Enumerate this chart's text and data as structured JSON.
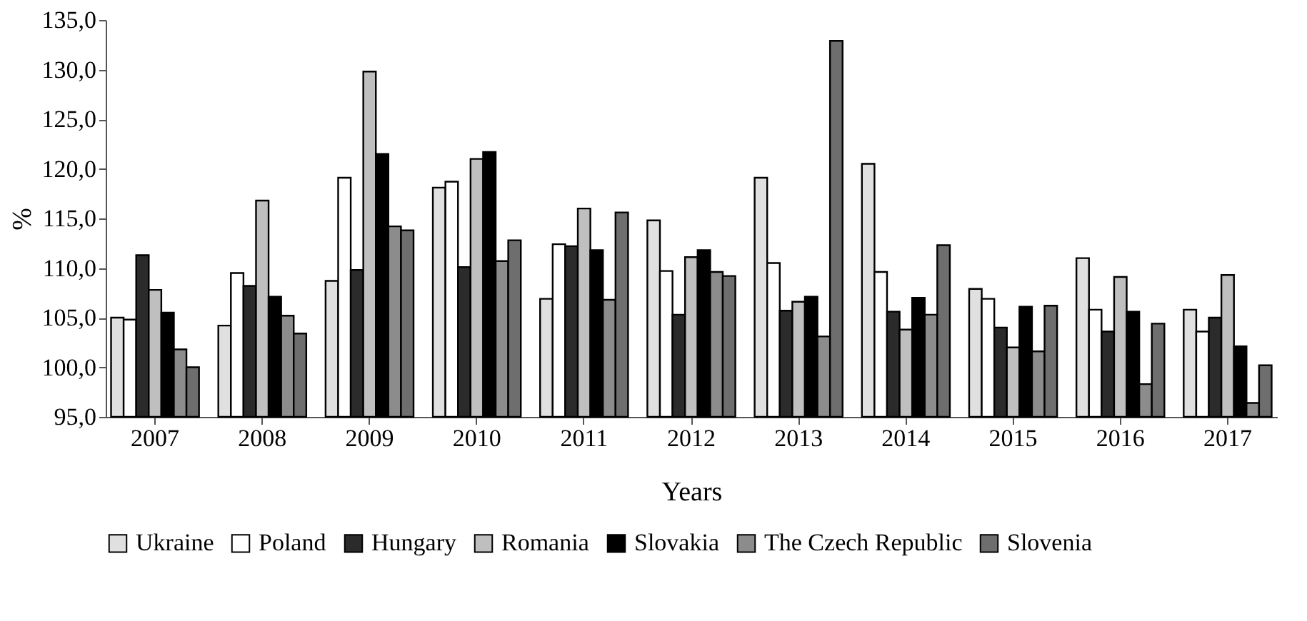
{
  "chart_data": {
    "type": "bar",
    "xlabel": "Years",
    "ylabel": "%",
    "categories": [
      "2007",
      "2008",
      "2009",
      "2010",
      "2011",
      "2012",
      "2013",
      "2014",
      "2015",
      "2016",
      "2017"
    ],
    "series": [
      {
        "name": "Ukraine",
        "color": "#e0e0e0",
        "values": [
          105.0,
          104.2,
          108.7,
          118.1,
          106.9,
          114.8,
          119.1,
          120.5,
          107.9,
          111.0,
          105.8
        ]
      },
      {
        "name": "Poland",
        "color": "#ffffff",
        "values": [
          104.8,
          109.5,
          119.1,
          118.7,
          112.4,
          109.7,
          110.5,
          109.6,
          106.9,
          105.8,
          103.6
        ]
      },
      {
        "name": "Hungary",
        "color": "#2b2b2b",
        "values": [
          111.3,
          108.2,
          109.8,
          110.1,
          112.2,
          105.3,
          105.7,
          105.6,
          104.0,
          103.6,
          105.0
        ]
      },
      {
        "name": "Romania",
        "color": "#bfbfbf",
        "values": [
          107.8,
          116.8,
          129.8,
          121.0,
          116.0,
          111.1,
          106.6,
          103.8,
          102.0,
          109.1,
          109.3
        ]
      },
      {
        "name": "Slovakia",
        "color": "#000000",
        "values": [
          105.5,
          107.1,
          121.5,
          121.7,
          111.8,
          111.8,
          107.1,
          107.0,
          106.1,
          105.6,
          102.1
        ]
      },
      {
        "name": "The Czech Republic",
        "color": "#8c8c8c",
        "values": [
          101.8,
          105.2,
          114.2,
          110.7,
          106.8,
          109.6,
          103.1,
          105.3,
          101.6,
          98.3,
          96.4
        ]
      },
      {
        "name": "Slovenia",
        "color": "#6e6e6e",
        "values": [
          100.0,
          103.4,
          113.8,
          112.8,
          115.6,
          109.2,
          132.9,
          112.3,
          106.2,
          104.4,
          100.2
        ]
      }
    ],
    "ylim": [
      95,
      135
    ],
    "yticks": [
      {
        "value": 95,
        "label": "95,0"
      },
      {
        "value": 100,
        "label": "100,0"
      },
      {
        "value": 105,
        "label": "105,0"
      },
      {
        "value": 110,
        "label": "110,0"
      },
      {
        "value": 115,
        "label": "115,0"
      },
      {
        "value": 120,
        "label": "120,0"
      },
      {
        "value": 125,
        "label": "125,0"
      },
      {
        "value": 130,
        "label": "130,0"
      },
      {
        "value": 135,
        "label": "135,0"
      }
    ],
    "legend": "bottom"
  }
}
